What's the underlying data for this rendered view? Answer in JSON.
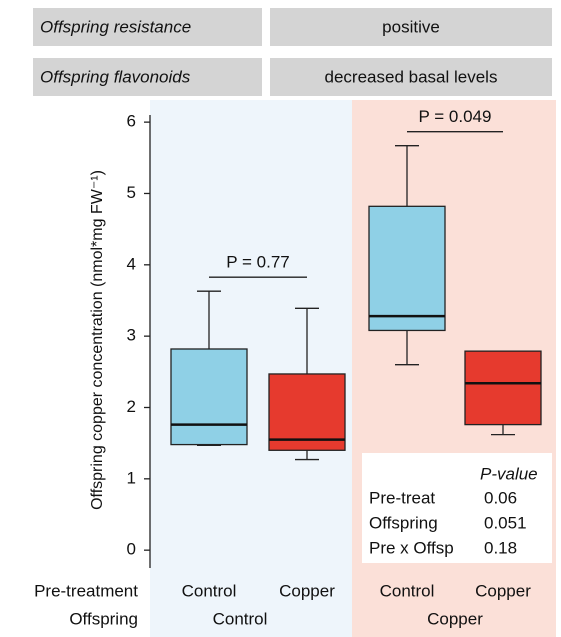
{
  "header": {
    "rows": [
      [
        "Offspring resistance",
        "positive"
      ],
      [
        "Offspring flavonoids",
        "decreased basal levels"
      ]
    ]
  },
  "chart_data": {
    "type": "box",
    "y_label": "Offspring copper concentration (nmol*mg FW⁻¹)",
    "row_labels": [
      "Pre-treatment",
      "Offspring"
    ],
    "categories": [
      "Control",
      "Copper",
      "Control",
      "Copper"
    ],
    "groups": [
      "Control",
      "Copper"
    ],
    "group_colors": [
      "#eef5fb",
      "#fbe0d8"
    ],
    "boxes": [
      {
        "min": 1.47,
        "q1": 1.48,
        "median": 1.76,
        "q3": 2.82,
        "max": 3.63,
        "color": "#8fd0e6"
      },
      {
        "min": 1.27,
        "q1": 1.4,
        "median": 1.55,
        "q3": 2.47,
        "max": 3.39,
        "color": "#e63a2e"
      },
      {
        "min": 2.6,
        "q1": 3.08,
        "median": 3.28,
        "q3": 4.82,
        "max": 5.67,
        "color": "#8fd0e6"
      },
      {
        "min": 1.62,
        "q1": 1.76,
        "median": 2.34,
        "q3": 2.79,
        "max": 2.79,
        "color": "#e63a2e"
      }
    ],
    "annotations": [
      "P = 0.77",
      "P = 0.049"
    ],
    "stats_table": {
      "header": "P-value",
      "rows": [
        [
          "Pre-treat",
          "0.06"
        ],
        [
          "Offspring",
          "0.051"
        ],
        [
          "Pre x Offsp",
          "0.18"
        ]
      ]
    },
    "ylim": [
      -0.25,
      6.1
    ],
    "yticks": [
      0,
      1,
      2,
      3,
      4,
      5,
      6
    ]
  }
}
